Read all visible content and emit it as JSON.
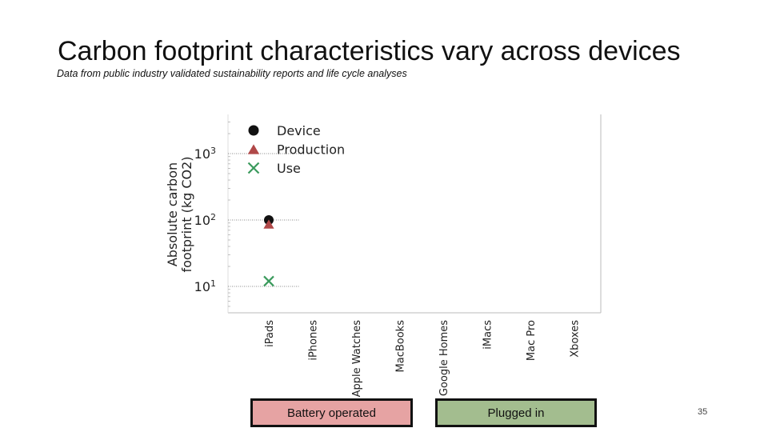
{
  "slide": {
    "title": "Carbon footprint characteristics vary across devices",
    "subtitle": "Data from public industry validated sustainability reports and life cycle analyses",
    "page_number": "35",
    "groups": [
      {
        "label": "Battery operated",
        "color": "#e6a3a3"
      },
      {
        "label": "Plugged in",
        "color": "#a3bd8f"
      }
    ]
  },
  "chart_data": {
    "type": "scatter",
    "title": "",
    "ylabel": "Absolute carbon footprint (kg CO2)",
    "yscale": "log",
    "ylim": [
      6,
      2000
    ],
    "yticks": [
      10,
      100,
      1000
    ],
    "ytick_labels": [
      {
        "base": "10",
        "exp": "1"
      },
      {
        "base": "10",
        "exp": "2"
      },
      {
        "base": "10",
        "exp": "3"
      }
    ],
    "grid": true,
    "legend_position": "top-left",
    "categories": [
      "iPads",
      "iPhones",
      "Apple Watches",
      "MacBooks",
      "Google Homes",
      "iMacs",
      "Mac Pro",
      "Xboxes"
    ],
    "series": [
      {
        "name": "Device",
        "marker": "circle",
        "color": "#111111",
        "values": [
          100,
          null,
          null,
          null,
          null,
          null,
          null,
          null
        ]
      },
      {
        "name": "Production",
        "marker": "triangle",
        "color": "#b04848",
        "values": [
          87,
          null,
          null,
          null,
          null,
          null,
          null,
          null
        ]
      },
      {
        "name": "Use",
        "marker": "x",
        "color": "#3a9a5c",
        "values": [
          12,
          null,
          null,
          null,
          null,
          null,
          null,
          null
        ]
      }
    ]
  }
}
